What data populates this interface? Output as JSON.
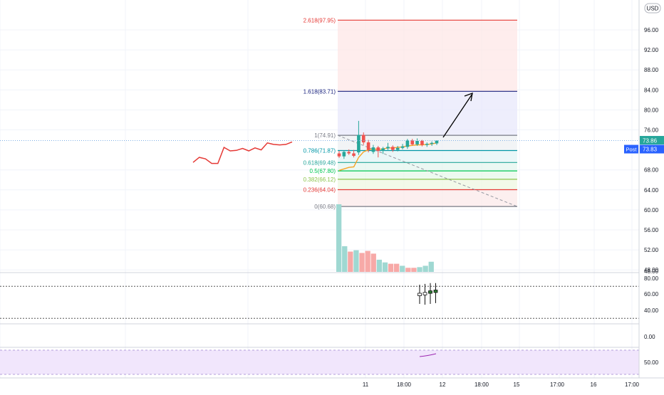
{
  "chart_data": {
    "type": "candlestick",
    "currency": "USD",
    "price_axis_ticks": [
      96.0,
      92.0,
      88.0,
      84.0,
      80.0,
      76.0,
      68.0,
      64.0,
      60.0,
      56.0,
      52.0,
      48.0
    ],
    "price_axis_labels": [
      "96.00",
      "92.00",
      "88.00",
      "84.00",
      "80.00",
      "76.00",
      "68.00",
      "64.00",
      "60.00",
      "56.00",
      "52.00",
      "48.00"
    ],
    "price_badges": [
      {
        "label": "73.86",
        "value": 73.86,
        "color": "#26a69a"
      },
      {
        "label": "73.83",
        "value": 73.83,
        "color": "#2962ff",
        "tag": "Post"
      }
    ],
    "time_axis_labels": [
      "11",
      "18:00",
      "12",
      "18:00",
      "15",
      "17:00",
      "16",
      "17:00"
    ],
    "fib_levels": [
      {
        "ratio": "2.618",
        "price": 97.95,
        "label": "2.618(97.95)",
        "color": "#e53935"
      },
      {
        "ratio": "1.618",
        "price": 83.71,
        "label": "1.618(83.71)",
        "color": "#1a237e"
      },
      {
        "ratio": "1",
        "price": 74.91,
        "label": "1(74.91)",
        "color": "#787b86"
      },
      {
        "ratio": "0.786",
        "price": 71.87,
        "label": "0.786(71.87)",
        "color": "#0097a7"
      },
      {
        "ratio": "0.618",
        "price": 69.48,
        "label": "0.618(69.48)",
        "color": "#26a69a"
      },
      {
        "ratio": "0.5",
        "price": 67.8,
        "label": "0.5(67.80)",
        "color": "#00c853"
      },
      {
        "ratio": "0.382",
        "price": 66.12,
        "label": "0.382(66.12)",
        "color": "#8bc34a"
      },
      {
        "ratio": "0.236",
        "price": 64.04,
        "label": "0.236(64.04)",
        "color": "#e53935"
      },
      {
        "ratio": "0",
        "price": 60.68,
        "label": "0(60.68)",
        "color": "#787b86"
      }
    ],
    "early_line_series": [
      69.5,
      70.5,
      70.2,
      69.3,
      69.3,
      72.5,
      71.8,
      71.9,
      72.3,
      71.8,
      72.4,
      72.0,
      73.4,
      73.1,
      73.0,
      73.1,
      73.6
    ],
    "candles": [
      {
        "o": 71.3,
        "h": 71.8,
        "l": 70.4,
        "c": 70.7
      },
      {
        "o": 70.7,
        "h": 71.9,
        "l": 70.2,
        "c": 71.6
      },
      {
        "o": 71.6,
        "h": 72.1,
        "l": 71.0,
        "c": 71.3
      },
      {
        "o": 71.3,
        "h": 72.0,
        "l": 70.5,
        "c": 70.8
      },
      {
        "o": 71.5,
        "h": 77.8,
        "l": 71.0,
        "c": 75.0
      },
      {
        "o": 75.0,
        "h": 75.5,
        "l": 73.0,
        "c": 73.5
      },
      {
        "o": 73.5,
        "h": 74.0,
        "l": 71.5,
        "c": 72.0
      },
      {
        "o": 71.6,
        "h": 73.0,
        "l": 71.2,
        "c": 72.5
      },
      {
        "o": 72.5,
        "h": 72.8,
        "l": 70.5,
        "c": 71.8
      },
      {
        "o": 71.8,
        "h": 72.6,
        "l": 71.2,
        "c": 72.3
      },
      {
        "o": 72.3,
        "h": 73.4,
        "l": 71.8,
        "c": 72.6
      },
      {
        "o": 72.6,
        "h": 72.9,
        "l": 71.6,
        "c": 72.0
      },
      {
        "o": 72.0,
        "h": 72.8,
        "l": 71.7,
        "c": 72.4
      },
      {
        "o": 72.4,
        "h": 73.2,
        "l": 72.1,
        "c": 72.7
      },
      {
        "o": 72.6,
        "h": 74.2,
        "l": 72.2,
        "c": 73.9
      },
      {
        "o": 73.9,
        "h": 74.2,
        "l": 72.9,
        "c": 73.1
      },
      {
        "o": 73.1,
        "h": 74.3,
        "l": 72.8,
        "c": 73.8
      },
      {
        "o": 73.8,
        "h": 74.0,
        "l": 72.7,
        "c": 73.0
      },
      {
        "o": 73.0,
        "h": 73.5,
        "l": 72.6,
        "c": 73.2
      },
      {
        "o": 73.2,
        "h": 73.7,
        "l": 72.8,
        "c": 73.4
      },
      {
        "o": 73.3,
        "h": 73.9,
        "l": 73.0,
        "c": 73.86
      }
    ],
    "volume_bars": [
      {
        "v": 100,
        "up": true
      },
      {
        "v": 38,
        "up": true
      },
      {
        "v": 30,
        "up": false
      },
      {
        "v": 32,
        "up": true
      },
      {
        "v": 28,
        "up": false
      },
      {
        "v": 31,
        "up": false
      },
      {
        "v": 27,
        "up": false
      },
      {
        "v": 18,
        "up": true
      },
      {
        "v": 14,
        "up": true
      },
      {
        "v": 12,
        "up": false
      },
      {
        "v": 12,
        "up": false
      },
      {
        "v": 9,
        "up": true
      },
      {
        "v": 6,
        "up": false
      },
      {
        "v": 6,
        "up": false
      },
      {
        "v": 7,
        "up": true
      },
      {
        "v": 9,
        "up": true
      },
      {
        "v": 15,
        "up": true
      }
    ],
    "indicator1_ticks": [
      "80.00",
      "60.00",
      "40.00"
    ],
    "indicator1_levels": [
      70,
      30
    ],
    "indicator1_bars": [
      {
        "open": 60.0,
        "close": 60.0,
        "high": 72,
        "low": 48
      },
      {
        "open": 60.0,
        "close": 61.0,
        "high": 73,
        "low": 47
      },
      {
        "open": 61.0,
        "close": 63.0,
        "high": 74,
        "low": 48
      },
      {
        "open": 63.0,
        "close": 64.0,
        "high": 74,
        "low": 49
      }
    ],
    "indicator2_ticks": [
      "0.00"
    ],
    "indicator3_ticks": [
      "50.00"
    ]
  }
}
